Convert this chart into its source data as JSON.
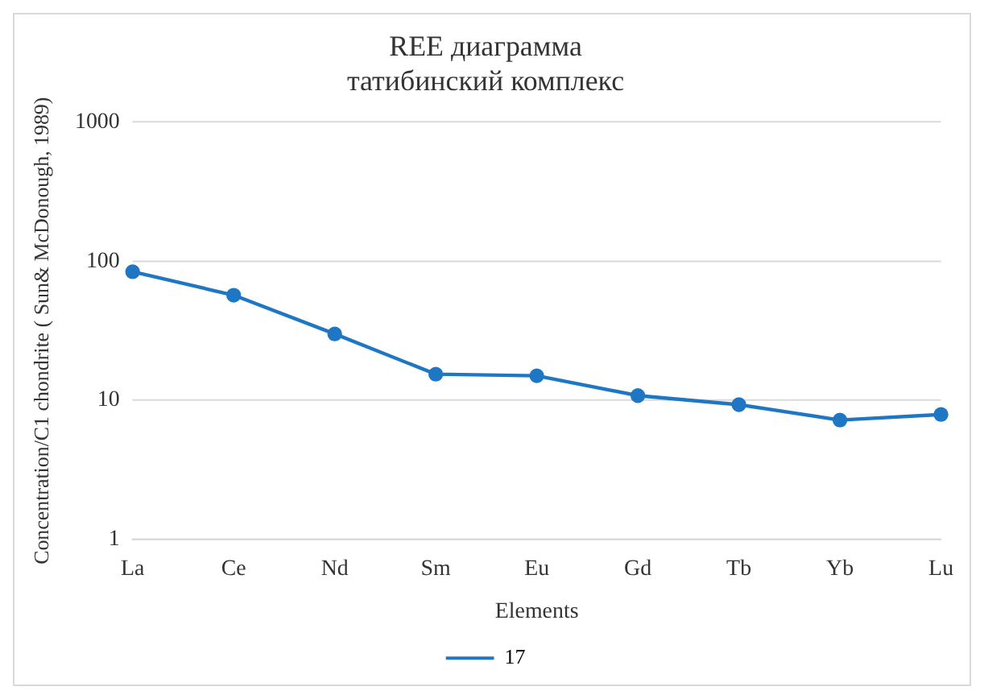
{
  "chart_data": {
    "type": "line",
    "title": "REE диаграмма\nтатибинский комплекс",
    "xlabel": "Elements",
    "ylabel": "Concentration/C1 chondrite ( Sun& McDonough, 1989)",
    "categories": [
      "La",
      "Ce",
      "Nd",
      "Sm",
      "Eu",
      "Gd",
      "Tb",
      "Yb",
      "Lu"
    ],
    "series": [
      {
        "name": "17",
        "color": "#1f77c4",
        "values": [
          84,
          57,
          30,
          15.4,
          15,
          10.8,
          9.3,
          7.2,
          7.9
        ]
      }
    ],
    "log": true,
    "ylim": [
      1,
      1000
    ],
    "yticks": [
      1,
      10,
      100,
      1000
    ],
    "grid": "y",
    "legend": "bottom",
    "marker": "circle",
    "line_style": "solid"
  }
}
